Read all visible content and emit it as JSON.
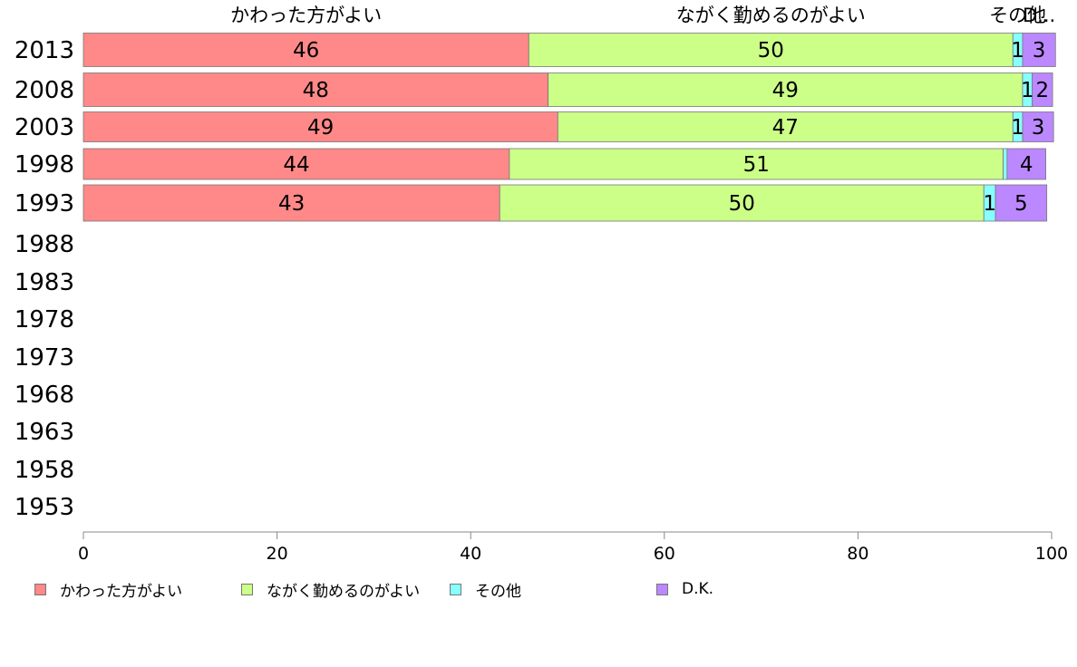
{
  "chart_data": {
    "type": "bar",
    "orientation": "horizontal",
    "stacked": true,
    "xlim": [
      0,
      100
    ],
    "x_ticks": [
      "0",
      "20",
      "40",
      "60",
      "80",
      "100"
    ],
    "categories": [
      "2013",
      "2008",
      "2003",
      "1998",
      "1993",
      "1988",
      "1983",
      "1978",
      "1973",
      "1968",
      "1963",
      "1958",
      "1953"
    ],
    "series": [
      {
        "name": "かわった方がよい",
        "color": "#ff8888",
        "values": [
          46,
          48,
          49,
          44,
          43,
          null,
          null,
          null,
          null,
          null,
          null,
          null,
          null
        ],
        "labels": [
          "46",
          "48",
          "49",
          "44",
          "43"
        ]
      },
      {
        "name": "ながく勤めるのがよい",
        "color": "#ccff88",
        "values": [
          50,
          49,
          47,
          51,
          50,
          null,
          null,
          null,
          null,
          null,
          null,
          null,
          null
        ],
        "labels": [
          "50",
          "49",
          "47",
          "51",
          "50"
        ]
      },
      {
        "name": "その他",
        "color": "#88ffff",
        "values": [
          1,
          1,
          1,
          0.4,
          1.2,
          null,
          null,
          null,
          null,
          null,
          null,
          null,
          null
        ],
        "labels": [
          "1",
          "1",
          "1",
          "",
          "1"
        ]
      },
      {
        "name": "D.K.",
        "color": "#bb88ff",
        "values": [
          3.4,
          2.1,
          3.2,
          4,
          5.3,
          null,
          null,
          null,
          null,
          null,
          null,
          null,
          null
        ],
        "labels": [
          "3",
          "2",
          "3",
          "4",
          "5"
        ]
      }
    ],
    "top_labels": [
      "かわった方がよい",
      "ながく勤めるのがよい",
      "その他",
      "D..."
    ],
    "legend_position": "bottom",
    "grid": false,
    "title": "",
    "xlabel": "",
    "ylabel": ""
  }
}
